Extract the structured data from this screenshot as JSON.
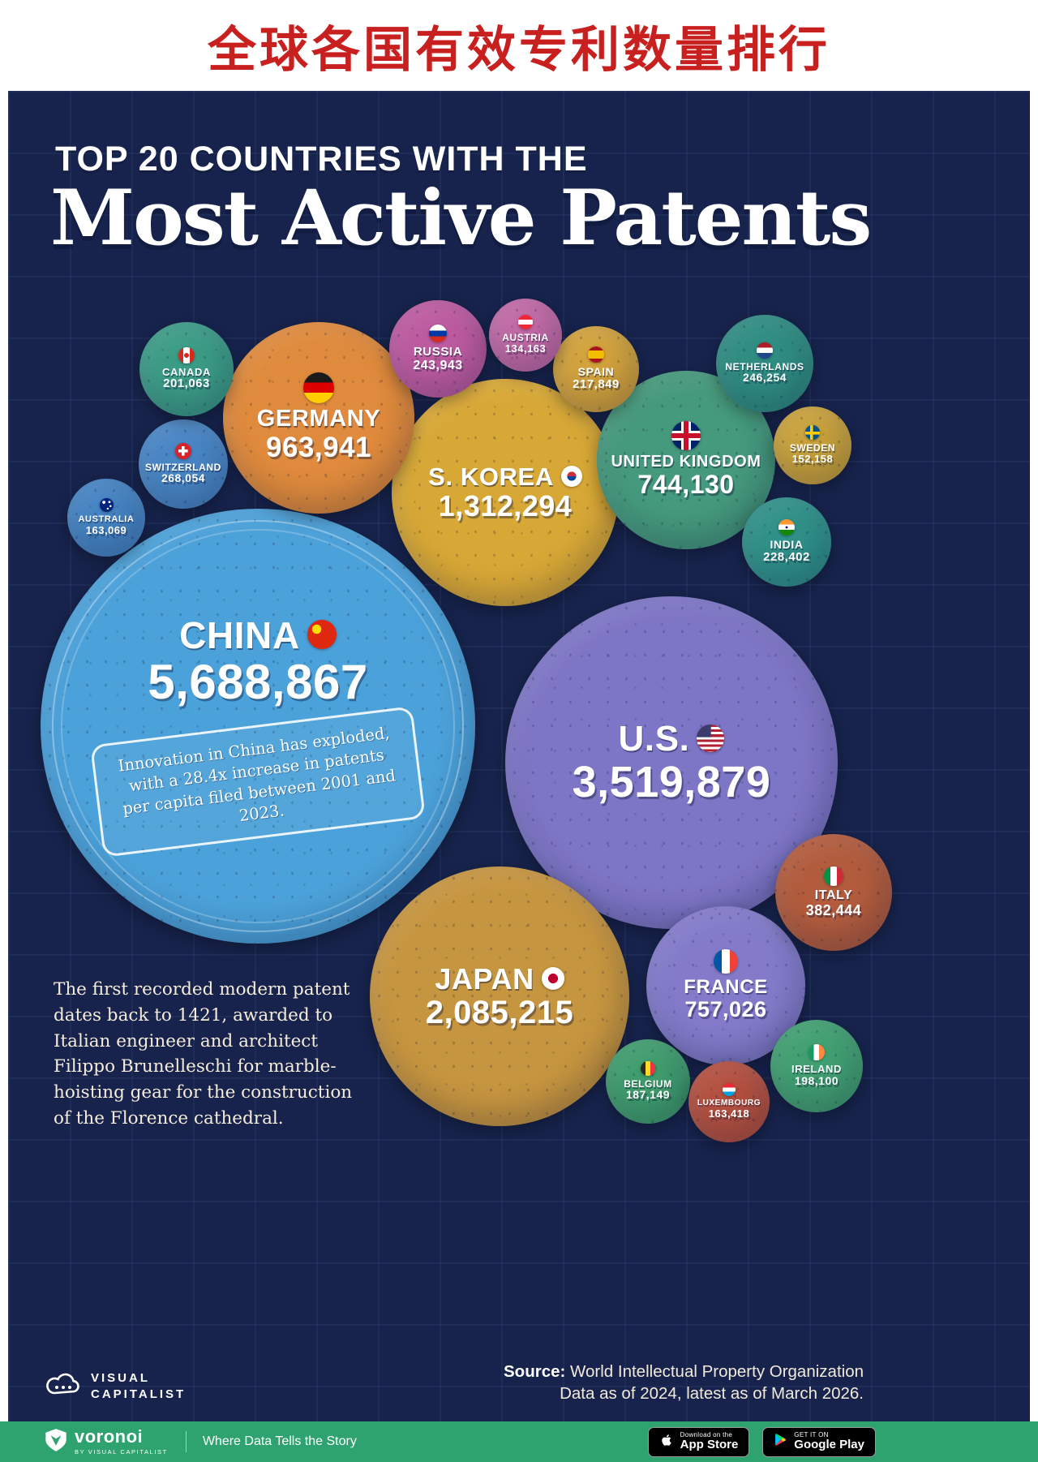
{
  "banner": {
    "title": "全球各国有效专利数量排行"
  },
  "header": {
    "kicker": "TOP 20 COUNTRIES WITH THE",
    "title": "Most Active Patents"
  },
  "china_annotation": "Innovation in China has exploded, with a 28.4x increase in patents per capita filed between 2001 and 2023.",
  "footnote": "The first recorded modern patent dates back to 1421, awarded to Italian engineer and architect Filippo Brunelleschi for marble-hoisting gear for the construction of the Florence cathedral.",
  "source": {
    "label": "Source:",
    "org": "World Intellectual Property Organization",
    "date_line": "Data as of 2024, latest as of March 2026."
  },
  "vc_logo": {
    "line1": "VISUAL",
    "line2": "CAPITALIST"
  },
  "footer_bar": {
    "voronoi": "voronoi",
    "voronoi_sub": "BY VISUAL CAPITALIST",
    "tagline": "Where Data Tells the Story",
    "appstore_small": "Download on the",
    "appstore_big": "App Store",
    "gplay_small": "GET IT ON",
    "gplay_big": "Google Play"
  },
  "colors": {
    "background_navy": "#17234c",
    "banner_red": "#c81f1f",
    "bar_green": "#2fa36f"
  },
  "chart_data": {
    "type": "bubble",
    "title": "Top 20 Countries with the Most Active Patents",
    "legend_position": "none",
    "series": [
      {
        "id": "china",
        "label": "CHINA",
        "value": 5688867,
        "value_label": "5,688,867",
        "color": "#4ba1d9"
      },
      {
        "id": "us",
        "label": "U.S.",
        "value": 3519879,
        "value_label": "3,519,879",
        "color": "#7d75c5"
      },
      {
        "id": "japan",
        "label": "JAPAN",
        "value": 2085215,
        "value_label": "2,085,215",
        "color": "#c6953f"
      },
      {
        "id": "skorea",
        "label": "S. KOREA",
        "value": 1312294,
        "value_label": "1,312,294",
        "color": "#d8a836"
      },
      {
        "id": "germany",
        "label": "GERMANY",
        "value": 963941,
        "value_label": "963,941",
        "color": "#df8a3c"
      },
      {
        "id": "france",
        "label": "FRANCE",
        "value": 757026,
        "value_label": "757,026",
        "color": "#837bca"
      },
      {
        "id": "uk",
        "label": "UNITED KINGDOM",
        "value": 744130,
        "value_label": "744,130",
        "color": "#45997c"
      },
      {
        "id": "italy",
        "label": "ITALY",
        "value": 382444,
        "value_label": "382,444",
        "color": "#b25c3d"
      },
      {
        "id": "switzerland",
        "label": "SWITZERLAND",
        "value": 268054,
        "value_label": "268,054",
        "color": "#4886c5"
      },
      {
        "id": "netherlands",
        "label": "NETHERLANDS",
        "value": 246254,
        "value_label": "246,254",
        "color": "#2f8d82"
      },
      {
        "id": "russia",
        "label": "RUSSIA",
        "value": 243943,
        "value_label": "243,943",
        "color": "#bd5ba0"
      },
      {
        "id": "india",
        "label": "INDIA",
        "value": 228402,
        "value_label": "228,402",
        "color": "#2f9189"
      },
      {
        "id": "spain",
        "label": "SPAIN",
        "value": 217849,
        "value_label": "217,849",
        "color": "#d2a23c"
      },
      {
        "id": "canada",
        "label": "CANADA",
        "value": 201063,
        "value_label": "201,063",
        "color": "#3b9c86"
      },
      {
        "id": "ireland",
        "label": "IRELAND",
        "value": 198100,
        "value_label": "198,100",
        "color": "#41a071"
      },
      {
        "id": "belgium",
        "label": "BELGIUM",
        "value": 187149,
        "value_label": "187,149",
        "color": "#3f9d6d"
      },
      {
        "id": "luxembourg",
        "label": "LUXEMBOURG",
        "value": 163418,
        "value_label": "163,418",
        "color": "#b4503f"
      },
      {
        "id": "australia",
        "label": "AUSTRALIA",
        "value": 163069,
        "value_label": "163,069",
        "color": "#4584c3"
      },
      {
        "id": "sweden",
        "label": "SWEDEN",
        "value": 152158,
        "value_label": "152,158",
        "color": "#c9a23b"
      },
      {
        "id": "austria",
        "label": "AUSTRIA",
        "value": 134163,
        "value_label": "134,163",
        "color": "#c26aa6"
      }
    ]
  }
}
